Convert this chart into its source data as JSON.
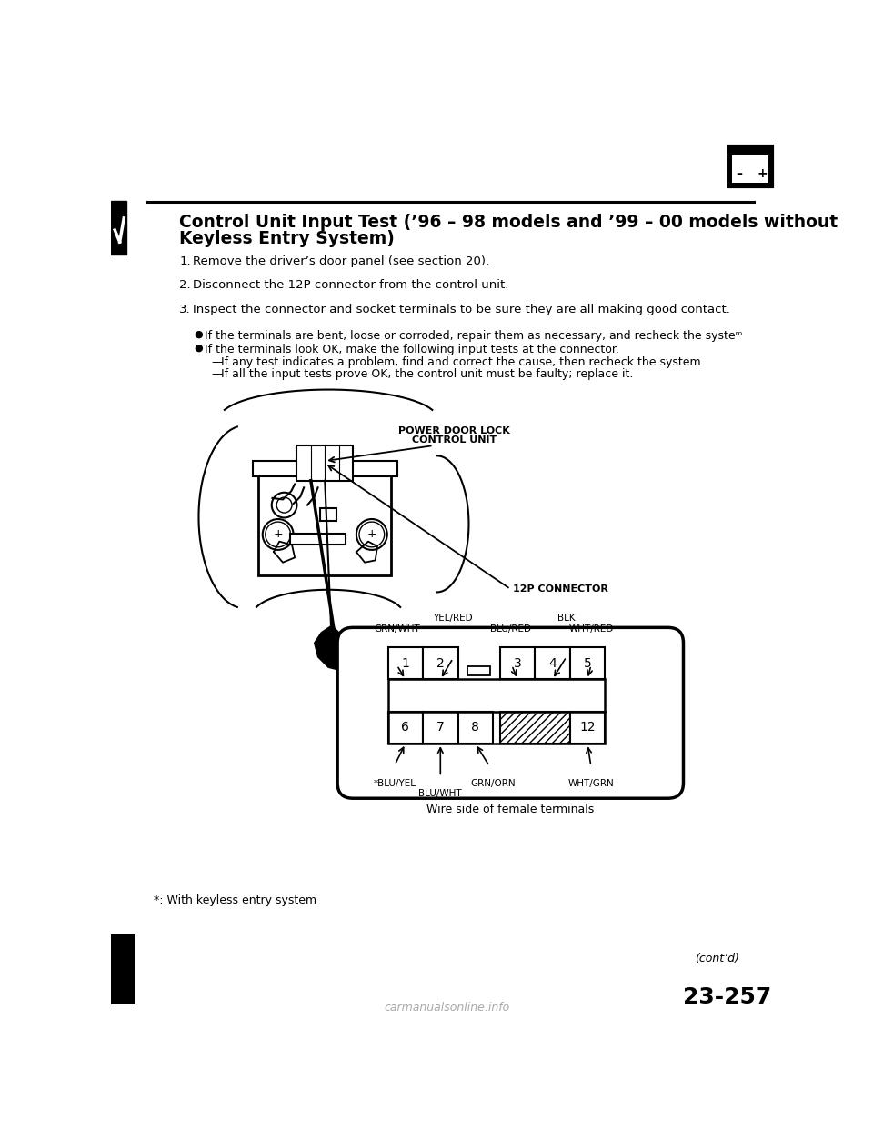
{
  "bg_color": "#ffffff",
  "title_line1": "Control Unit Input Test (’96 – 98 models and ’99 – 00 models without",
  "title_line2": "Keyless Entry System)",
  "step1": "Remove the driver’s door panel (see section 20).",
  "step2": "Disconnect the 12P connector from the control unit.",
  "step3": "Inspect the connector and socket terminals to be sure they are all making good contact.",
  "bullet1": "If the terminals are bent, loose or corroded, repair them as necessary, and recheck the systeᵐ",
  "bullet2": "If the terminals look OK, make the following input tests at the connector.",
  "sub1": "If any test indicates a problem, find and correct the cause, then recheck the system",
  "sub2": "If all the input tests prove OK, the control unit must be faulty; replace it.",
  "pdl_label1": "POWER DOOR LOCK",
  "pdl_label2": "CONTROL UNIT",
  "connector_label": "12P CONNECTOR",
  "wire_side_label": "Wire side of female terminals",
  "footnote": "*: With keyless entry system",
  "cont_label": "(cont’d)",
  "page_num": "23-257",
  "watermark": "carmanualsonline.info",
  "top_labels": [
    "GRN/WHT",
    "YEL/RED",
    "BLU/RED",
    "BLK",
    "WHT/RED"
  ],
  "bot_labels": [
    "*BLU/YEL",
    "BLU/WHT",
    "GRN/ORN",
    "WHT/GRN"
  ]
}
